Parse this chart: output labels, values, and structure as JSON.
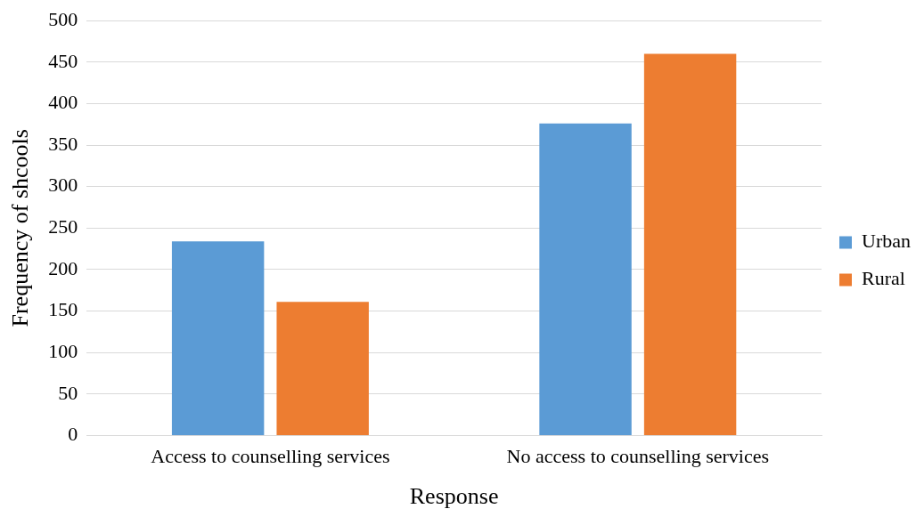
{
  "chart_data": {
    "type": "bar",
    "xlabel": "Response",
    "ylabel": "Frequency of shcools",
    "categories": [
      "Access to counselling services",
      "No access to counselling services"
    ],
    "series": [
      {
        "name": "Urban",
        "color": "#5b9bd5",
        "values": [
          234,
          376
        ]
      },
      {
        "name": "Rural",
        "color": "#ed7d31",
        "values": [
          161,
          460
        ]
      }
    ],
    "ylim": [
      0,
      500
    ],
    "yticks": [
      0,
      50,
      100,
      150,
      200,
      250,
      300,
      350,
      400,
      450,
      500
    ],
    "grid": "y",
    "legend": "right"
  }
}
